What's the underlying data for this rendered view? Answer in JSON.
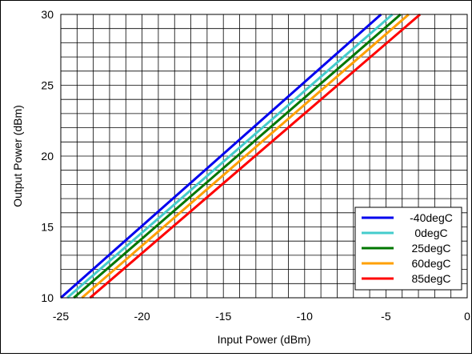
{
  "chart_data": {
    "type": "line",
    "title": "",
    "xlabel": "Input Power (dBm)",
    "ylabel": "Output Power (dBm)",
    "xlim": [
      -25,
      0
    ],
    "ylim": [
      10,
      30
    ],
    "x_major_ticks": [
      -25,
      -20,
      -15,
      -10,
      -5,
      0
    ],
    "y_major_ticks": [
      10,
      15,
      20,
      25,
      30
    ],
    "x_tick_labels": [
      "-25",
      "-20",
      "-15",
      "-10",
      "-5",
      "0"
    ],
    "y_tick_labels": [
      "10",
      "15",
      "20",
      "25",
      "30"
    ],
    "grid": true,
    "legend_position": "bottom-right",
    "series": [
      {
        "name": "-40degC",
        "color": "#0000ee",
        "points": [
          [
            -25,
            10.0
          ],
          [
            -5.3,
            30.0
          ]
        ]
      },
      {
        "name": "0degC",
        "color": "#44cccc",
        "points": [
          [
            -24.6,
            10.0
          ],
          [
            -4.6,
            30.0
          ]
        ]
      },
      {
        "name": "25degC",
        "color": "#007700",
        "points": [
          [
            -24.2,
            10.0
          ],
          [
            -4.1,
            30.0
          ]
        ]
      },
      {
        "name": "60degC",
        "color": "#ffa000",
        "points": [
          [
            -23.7,
            10.0
          ],
          [
            -3.6,
            30.0
          ]
        ]
      },
      {
        "name": "85degC",
        "color": "#ff0000",
        "points": [
          [
            -23.2,
            10.0
          ],
          [
            -2.9,
            30.0
          ]
        ]
      }
    ]
  }
}
